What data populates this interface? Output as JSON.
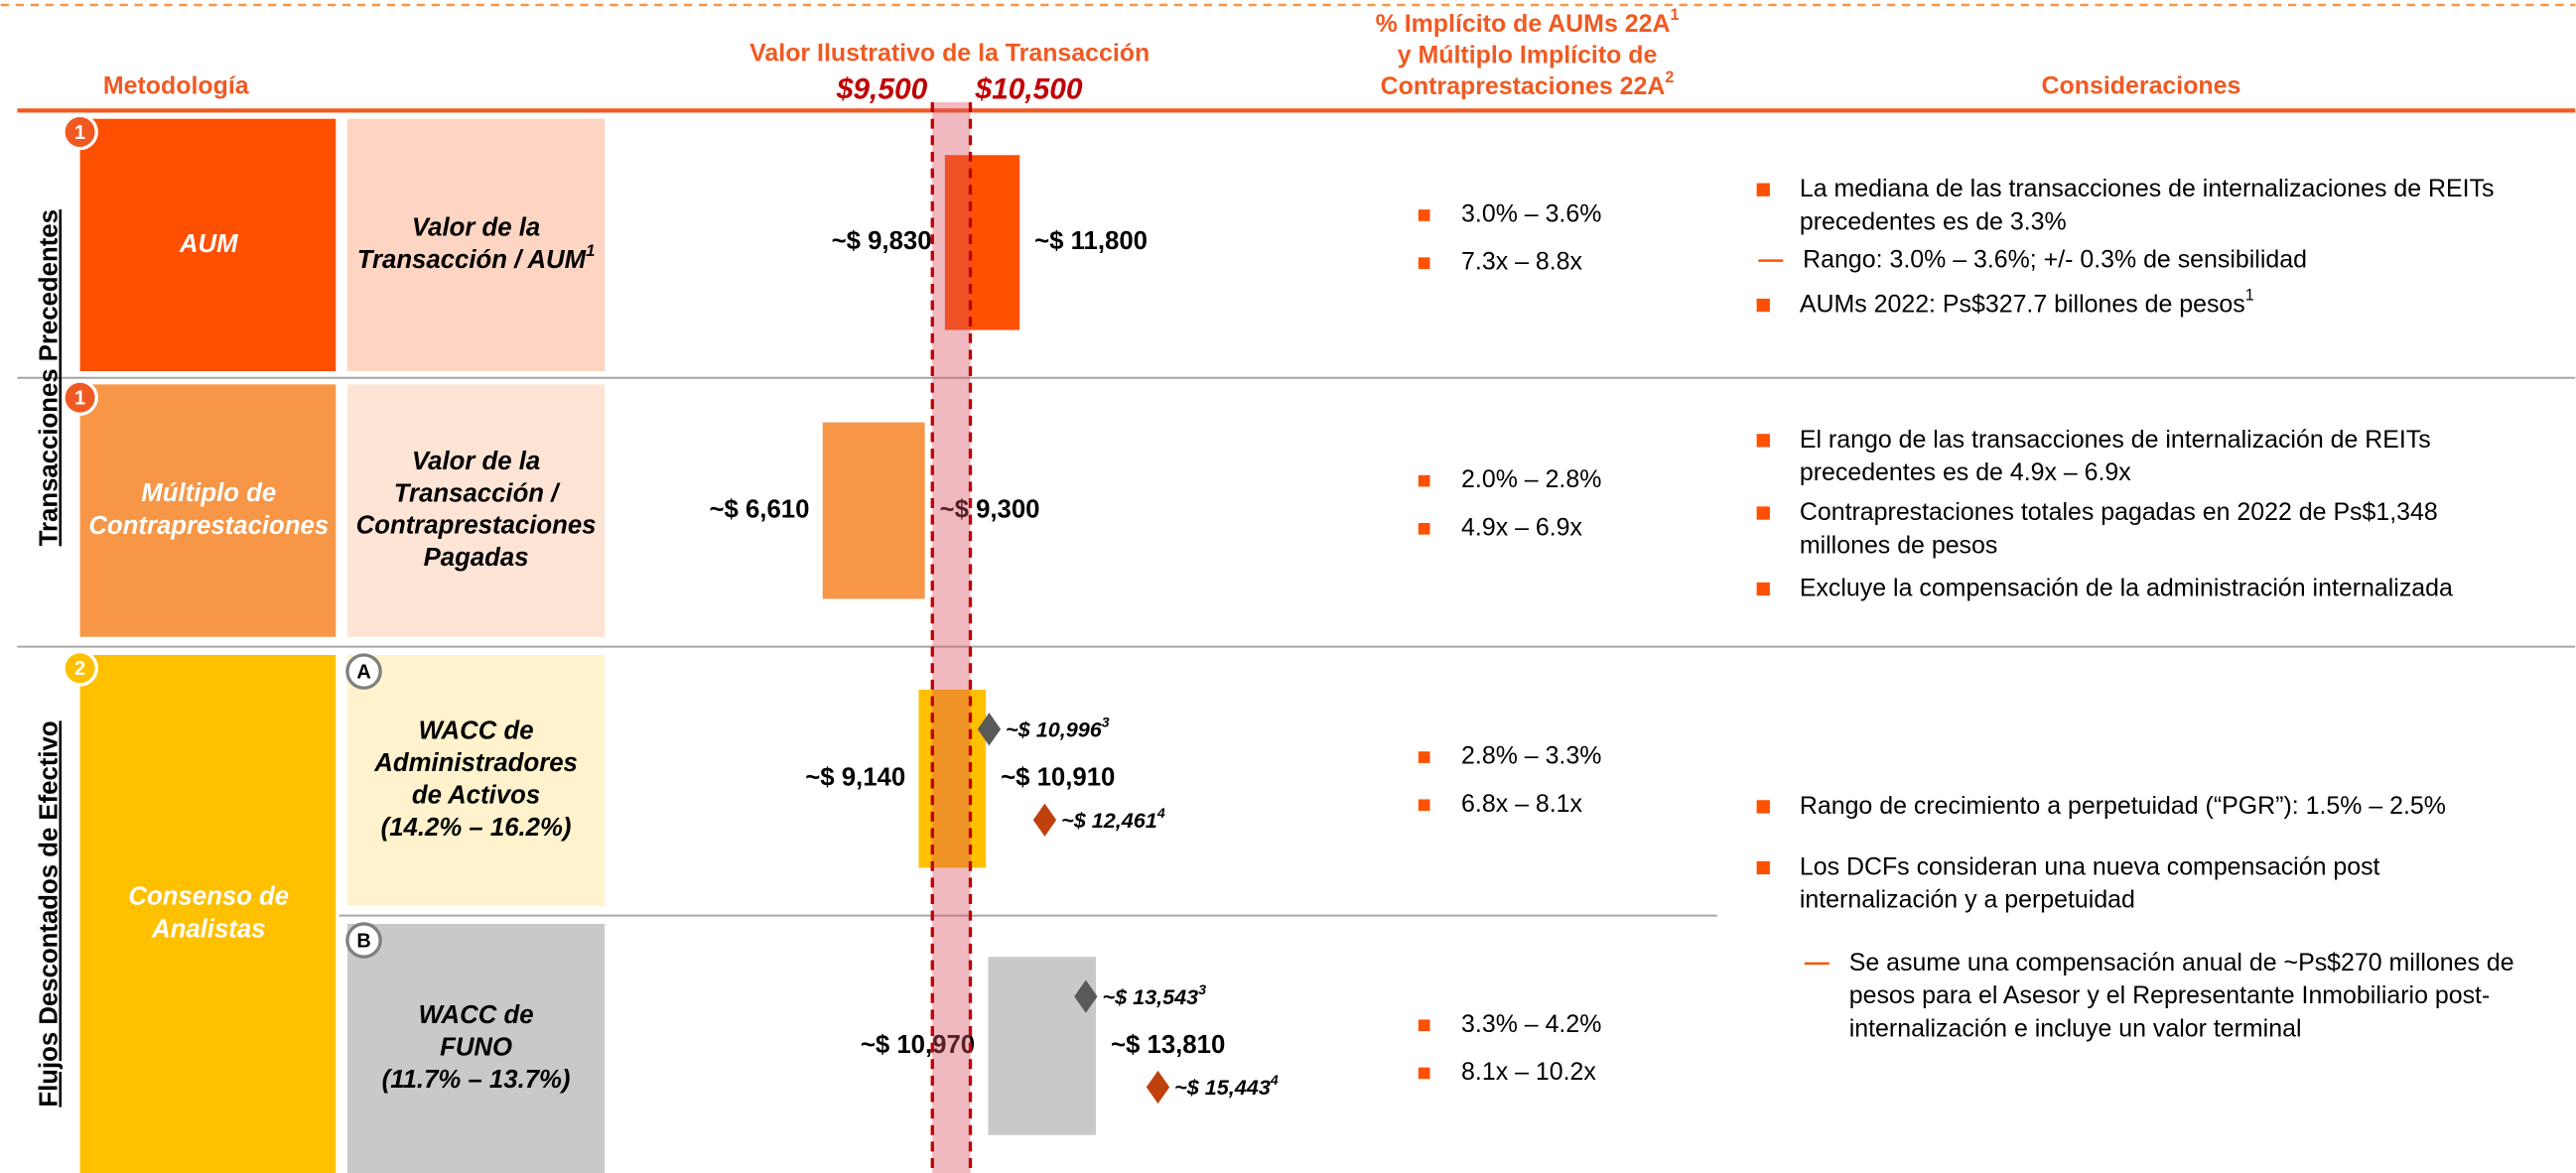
{
  "header": {
    "methodology": "Metodología",
    "value_title": "Valor Ilustrativo de la Transacción",
    "implied": [
      {
        "text": "% Implícito de AUMs 22A",
        "sup": "1"
      },
      {
        "text": "y Múltiplo Implícito de"
      },
      {
        "text": "Contraprestaciones 22A",
        "sup": "2"
      }
    ],
    "considerations": "Consideraciones"
  },
  "sections": [
    "Transacciones Precedentes",
    "Flujos Descontados de Efectivo"
  ],
  "methods": [
    {
      "badge": "1",
      "lines": [
        "AUM"
      ],
      "color": "#fe5000"
    },
    {
      "badge": "1",
      "lines": [
        "Múltiplo de",
        "Contraprestaciones"
      ],
      "color": "#f79646"
    },
    {
      "badge": "2",
      "lines": [
        "Consenso de",
        "Analistas"
      ],
      "color": "#ffc000"
    }
  ],
  "metrics": [
    {
      "lines": [
        "Valor de la",
        "Transacción / AUM"
      ],
      "sup": "1",
      "color": "#fdd5c2"
    },
    {
      "lines": [
        "Valor de la",
        "Transacción /",
        "Contraprestaciones",
        "Pagadas"
      ],
      "color": "#fde4d4"
    },
    {
      "badge": "A",
      "lines": [
        "WACC de",
        "Administradores",
        "de Activos",
        "(14.2% – 16.2%)"
      ],
      "color": "#fff2cc"
    },
    {
      "badge": "B",
      "lines": [
        "WACC de",
        "FUNO",
        "(11.7% – 13.7%)"
      ],
      "color": "#c9c9c9"
    }
  ],
  "implied": [
    [
      "3.0% – 3.6%",
      "7.3x – 8.8x"
    ],
    [
      "2.0% – 2.8%",
      "4.9x – 6.9x"
    ],
    [
      "2.8% – 3.3%",
      "6.8x – 8.1x"
    ],
    [
      "3.3% – 4.2%",
      "8.1x – 10.2x"
    ]
  ],
  "considerations": [
    [
      {
        "level": 1,
        "lines": [
          "La mediana de las transacciones de internalizaciones de REITs",
          "precedentes es de 3.3%"
        ]
      },
      {
        "level": 2,
        "lines": [
          "Rango: 3.0% – 3.6%; +/- 0.3% de sensibilidad"
        ]
      },
      {
        "level": 1,
        "lines": [
          "AUMs 2022: Ps$327.7 billones de pesos"
        ],
        "sup": "1"
      }
    ],
    [
      {
        "level": 1,
        "lines": [
          "El rango de las transacciones de internalización de REITs",
          "precedentes es de 4.9x – 6.9x"
        ]
      },
      {
        "level": 1,
        "lines": [
          "Contraprestaciones totales pagadas en 2022 de Ps$1,348",
          "millones de pesos"
        ]
      },
      {
        "level": 1,
        "lines": [
          "Excluye la compensación de la administración internalizada"
        ]
      }
    ],
    [
      {
        "level": 1,
        "lines": [
          "Rango de crecimiento a perpetuidad (“PGR”): 1.5% – 2.5%"
        ]
      },
      {
        "level": 1,
        "lines": [
          "Los DCFs consideran una nueva compensación post",
          "internalización y a perpetuidad"
        ]
      },
      {
        "level": 2,
        "lines": [
          "Se asume una compensación anual de ~Ps$270 millones de",
          "pesos para el Asesor y el Representante Inmobiliario post-",
          "internalización e incluye un valor terminal"
        ]
      }
    ]
  ],
  "chart_data": {
    "type": "football-field",
    "xlim": [
      2000,
      20000
    ],
    "reference_lines": [
      9500,
      10500
    ],
    "reference_labels": [
      "$9,500",
      "$10,500"
    ],
    "bars": [
      {
        "low": 9830,
        "high": 11800,
        "low_label": "~$ 9,830",
        "high_label": "~$ 11,800",
        "color": "#fe5000"
      },
      {
        "low": 6610,
        "high": 9300,
        "low_label": "~$ 6,610",
        "high_label": "~$ 9,300",
        "color": "#f79646"
      },
      {
        "low": 9140,
        "high": 10910,
        "low_label": "~$ 9,140",
        "high_label": "~$ 10,910",
        "color": "#ffc000",
        "markers": [
          {
            "value": 10996,
            "label": "~$ 10,996",
            "sup": "3",
            "color": "#595959"
          },
          {
            "value": 12461,
            "label": "~$ 12,461",
            "sup": "4",
            "color": "#c0400e"
          }
        ]
      },
      {
        "low": 10970,
        "high": 13810,
        "low_label": "~$ 10,970",
        "high_label": "~$ 13,810",
        "color": "#c9c9c9",
        "markers": [
          {
            "value": 13543,
            "label": "~$ 13,543",
            "sup": "3",
            "color": "#595959"
          },
          {
            "value": 15443,
            "label": "~$ 15,443",
            "sup": "4",
            "color": "#c0400e"
          }
        ]
      }
    ]
  }
}
